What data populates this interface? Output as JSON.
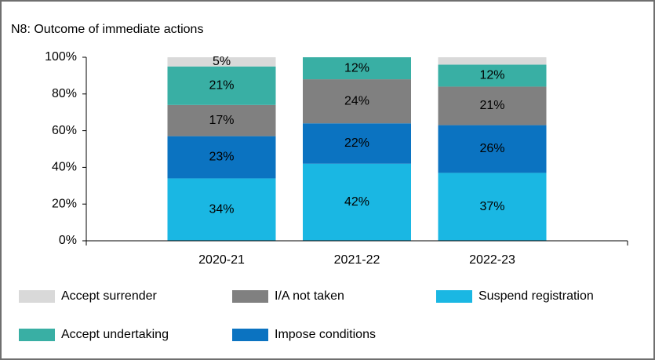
{
  "chart_data": {
    "type": "stacked_bar",
    "title": "N8: Outcome of immediate actions",
    "categories": [
      "2020-21",
      "2021-22",
      "2022-23"
    ],
    "series": [
      {
        "name": "Suspend registration",
        "color": "#1ab7e3",
        "values": [
          34,
          42,
          37
        ],
        "value_labels": [
          "34%",
          "42%",
          "37%"
        ]
      },
      {
        "name": "Impose conditions",
        "color": "#0b73c1",
        "values": [
          23,
          22,
          26
        ],
        "value_labels": [
          "23%",
          "22%",
          "26%"
        ]
      },
      {
        "name": "I/A not taken",
        "color": "#808080",
        "values": [
          17,
          24,
          21
        ],
        "value_labels": [
          "17%",
          "24%",
          "21%"
        ]
      },
      {
        "name": "Accept undertaking",
        "color": "#39afa4",
        "values": [
          21,
          12,
          12
        ],
        "value_labels": [
          "21%",
          "12%",
          "12%"
        ]
      },
      {
        "name": "Accept surrender",
        "color": "#d9d9d9",
        "values": [
          5,
          null,
          4
        ],
        "value_labels": [
          "5%",
          null,
          null
        ]
      }
    ],
    "ylim": [
      0,
      100
    ],
    "yticks": [
      {
        "value": 0,
        "label": "0%"
      },
      {
        "value": 20,
        "label": "20%"
      },
      {
        "value": 40,
        "label": "40%"
      },
      {
        "value": 60,
        "label": "60%"
      },
      {
        "value": 80,
        "label": "80%"
      },
      {
        "value": 100,
        "label": "100%"
      }
    ]
  }
}
